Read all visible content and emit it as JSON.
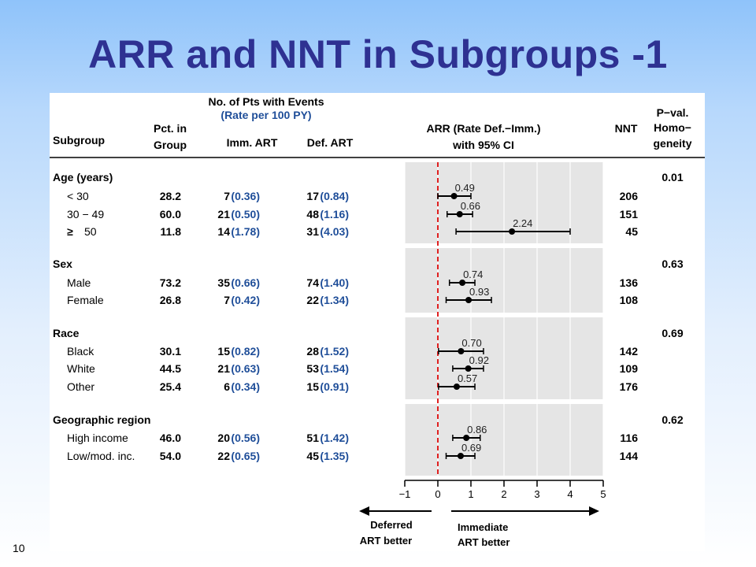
{
  "title": "ARR and NNT in Subgroups -1",
  "page_number": "10",
  "headers": {
    "subgroup": "Subgroup",
    "pct_line1": "Pct. in",
    "pct_line2": "Group",
    "events_line1": "No. of Pts with Events",
    "events_line2": "(Rate per 100 PY)",
    "imm": "Imm. ART",
    "def": "Def. ART",
    "arr_line1": "ARR (Rate Def.−Imm.)",
    "arr_line2": "with 95% CI",
    "nnt": "NNT",
    "pval_line1": "P−val.",
    "pval_line2": "Homo−",
    "pval_line3": "geneity"
  },
  "groups": [
    {
      "label": "Age (years)",
      "pval": "0.01",
      "rows": [
        {
          "label": "< 30",
          "symbol": "",
          "pct": "28.2",
          "imm_n": "7",
          "imm_rate": "(0.36)",
          "def_n": "17",
          "def_rate": "(0.84)",
          "arr_label": "0.49",
          "nnt": "206"
        },
        {
          "label": "30 − 49",
          "symbol": "",
          "pct": "60.0",
          "imm_n": "21",
          "imm_rate": "(0.50)",
          "def_n": "48",
          "def_rate": "(1.16)",
          "arr_label": "0.66",
          "nnt": "151"
        },
        {
          "label": "50",
          "symbol": "≥",
          "pct": "11.8",
          "imm_n": "14",
          "imm_rate": "(1.78)",
          "def_n": "31",
          "def_rate": "(4.03)",
          "arr_label": "2.24",
          "nnt": "45"
        }
      ]
    },
    {
      "label": "Sex",
      "pval": "0.63",
      "rows": [
        {
          "label": "Male",
          "symbol": "",
          "pct": "73.2",
          "imm_n": "35",
          "imm_rate": "(0.66)",
          "def_n": "74",
          "def_rate": "(1.40)",
          "arr_label": "0.74",
          "nnt": "136"
        },
        {
          "label": "Female",
          "symbol": "",
          "pct": "26.8",
          "imm_n": "7",
          "imm_rate": "(0.42)",
          "def_n": "22",
          "def_rate": "(1.34)",
          "arr_label": "0.93",
          "nnt": "108"
        }
      ]
    },
    {
      "label": "Race",
      "pval": "0.69",
      "rows": [
        {
          "label": "Black",
          "symbol": "",
          "pct": "30.1",
          "imm_n": "15",
          "imm_rate": "(0.82)",
          "def_n": "28",
          "def_rate": "(1.52)",
          "arr_label": "0.70",
          "nnt": "142"
        },
        {
          "label": "White",
          "symbol": "",
          "pct": "44.5",
          "imm_n": "21",
          "imm_rate": "(0.63)",
          "def_n": "53",
          "def_rate": "(1.54)",
          "arr_label": "0.92",
          "nnt": "109"
        },
        {
          "label": "Other",
          "symbol": "",
          "pct": "25.4",
          "imm_n": "6",
          "imm_rate": "(0.34)",
          "def_n": "15",
          "def_rate": "(0.91)",
          "arr_label": "0.57",
          "nnt": "176"
        }
      ]
    },
    {
      "label": "Geographic region",
      "pval": "0.62",
      "rows": [
        {
          "label": "High income",
          "symbol": "",
          "pct": "46.0",
          "imm_n": "20",
          "imm_rate": "(0.56)",
          "def_n": "51",
          "def_rate": "(1.42)",
          "arr_label": "0.86",
          "nnt": "116"
        },
        {
          "label": "Low/mod. inc.",
          "symbol": "",
          "pct": "54.0",
          "imm_n": "22",
          "imm_rate": "(0.65)",
          "def_n": "45",
          "def_rate": "(1.35)",
          "arr_label": "0.69",
          "nnt": "144"
        }
      ]
    }
  ],
  "chart_data": {
    "type": "forest",
    "xlim": [
      -1,
      5
    ],
    "x_ticks": [
      "−1",
      "0",
      "1",
      "2",
      "3",
      "4",
      "5"
    ],
    "x_tick_values": [
      -1,
      0,
      1,
      2,
      3,
      4,
      5
    ],
    "reference_line": 0,
    "grid": true,
    "points": [
      {
        "label": "< 30",
        "estimate": 0.49,
        "lower": 0.0,
        "upper": 1.0
      },
      {
        "label": "30 − 49",
        "estimate": 0.66,
        "lower": 0.28,
        "upper": 1.05
      },
      {
        "label": "≥ 50",
        "estimate": 2.24,
        "lower": 0.55,
        "upper": 4.0
      },
      {
        "label": "Male",
        "estimate": 0.74,
        "lower": 0.35,
        "upper": 1.12
      },
      {
        "label": "Female",
        "estimate": 0.93,
        "lower": 0.25,
        "upper": 1.62
      },
      {
        "label": "Black",
        "estimate": 0.7,
        "lower": 0.02,
        "upper": 1.38
      },
      {
        "label": "White",
        "estimate": 0.92,
        "lower": 0.45,
        "upper": 1.38
      },
      {
        "label": "Other",
        "estimate": 0.57,
        "lower": 0.02,
        "upper": 1.12
      },
      {
        "label": "High income",
        "estimate": 0.86,
        "lower": 0.45,
        "upper": 1.28
      },
      {
        "label": "Low/mod. inc.",
        "estimate": 0.69,
        "lower": 0.25,
        "upper": 1.12
      }
    ],
    "colors": {
      "point": "#000000",
      "reference_line": "#e02020",
      "panel_bg": "#e5e5e5",
      "rate_text": "#1f4e99",
      "title": "#2e3192"
    },
    "annotations": {
      "left_arrow_line1": "Deferred",
      "left_arrow_line2": "ART better",
      "right_arrow_line1": "Immediate",
      "right_arrow_line2": "ART better"
    }
  }
}
